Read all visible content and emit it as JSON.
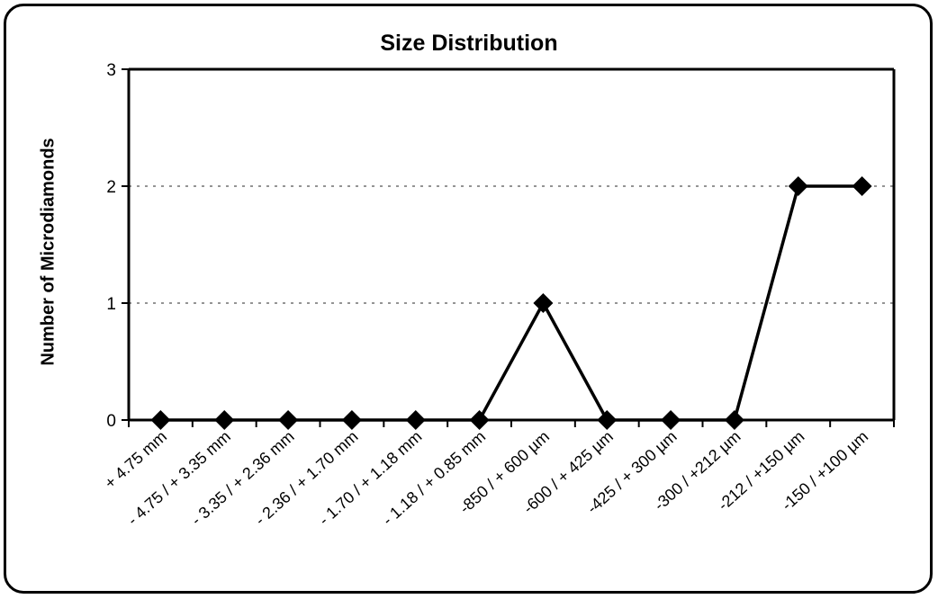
{
  "chart_data": {
    "type": "line",
    "title": "Size Distribution",
    "xlabel": "",
    "ylabel": "Number of Microdiamonds",
    "categories": [
      "+ 4.75 mm",
      "- 4.75 / + 3.35 mm",
      "- 3.35 / + 2.36 mm",
      "- 2.36 / + 1.70 mm",
      "- 1.70 / + 1.18 mm",
      "- 1.18 / + 0.85 mm",
      "-850 / + 600 µm",
      "-600 / + 425 µm",
      "-425 / + 300 µm",
      "-300 / +212 µm",
      "-212 / +150 µm",
      "-150 / +100 µm"
    ],
    "values": [
      0,
      0,
      0,
      0,
      0,
      0,
      1,
      0,
      0,
      0,
      2,
      2
    ],
    "ylim": [
      0,
      3
    ],
    "yticks": [
      "0",
      "1",
      "2",
      "3"
    ],
    "grid": true,
    "legend": "none",
    "line_color": "#000000",
    "marker": "diamond"
  }
}
